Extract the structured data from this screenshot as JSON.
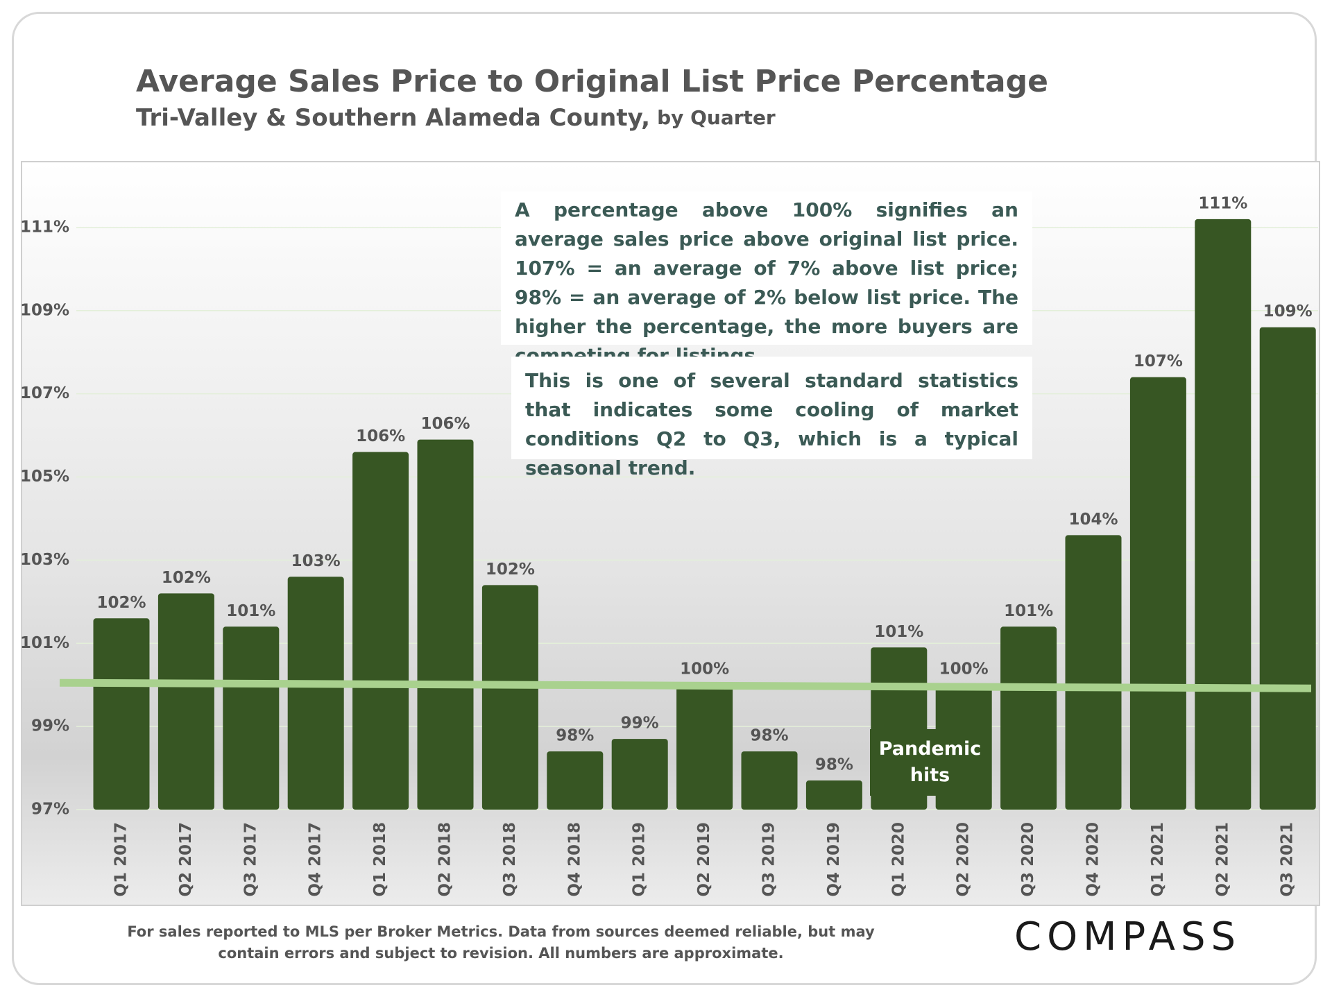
{
  "chart_data": {
    "type": "bar",
    "title": "Average Sales Price to Original List Price Percentage",
    "subtitle": "Tri-Valley & Southern Alameda County,",
    "subtitle_note": "by Quarter",
    "categories": [
      "Q1 2017",
      "Q2 2017",
      "Q3 2017",
      "Q4 2017",
      "Q1 2018",
      "Q2 2018",
      "Q3 2018",
      "Q4 2018",
      "Q1 2019",
      "Q2 2019",
      "Q3 2019",
      "Q4 2019",
      "Q1 2020",
      "Q2 2020",
      "Q3 2020",
      "Q4 2020",
      "Q1 2021",
      "Q2 2021",
      "Q3 2021"
    ],
    "values": [
      101.6,
      102.2,
      101.4,
      102.6,
      105.6,
      105.9,
      102.4,
      98.4,
      98.7,
      100.0,
      98.4,
      97.7,
      100.9,
      100.0,
      101.4,
      103.6,
      107.4,
      111.2,
      108.6
    ],
    "value_labels": [
      "102%",
      "102%",
      "101%",
      "103%",
      "106%",
      "106%",
      "102%",
      "98%",
      "99%",
      "100%",
      "98%",
      "98%",
      "101%",
      "100%",
      "101%",
      "104%",
      "107%",
      "111%",
      "109%"
    ],
    "color": "#375623",
    "ylim": [
      97,
      112.5
    ],
    "yticks": [
      {
        "value": 97,
        "label": "97%"
      },
      {
        "value": 99,
        "label": "99%"
      },
      {
        "value": 101,
        "label": "101%"
      },
      {
        "value": 103,
        "label": "103%"
      },
      {
        "value": 105,
        "label": "105%"
      },
      {
        "value": 107,
        "label": "107%"
      },
      {
        "value": 109,
        "label": "109%"
      },
      {
        "value": 111,
        "label": "111%"
      }
    ],
    "grid": true,
    "reference_line": {
      "value": 100,
      "color": "#a9d18e"
    },
    "annotations": [
      "A percentage above 100% signifies an average sales price above original list price. 107% = an average of 7% above list price; 98% = an average of 2% below list price. The higher the percentage, the more buyers are competing for listings.",
      "This is one of several standard statistics that indicates some cooling of market conditions Q2 to Q3, which is a typical seasonal trend.",
      "Pandemic hits"
    ],
    "footnote": [
      "For sales reported to MLS per Broker Metrics. Data from sources deemed reliable, but may",
      "contain errors and subject to revision. All numbers are approximate."
    ],
    "brand": "COMPASS"
  }
}
